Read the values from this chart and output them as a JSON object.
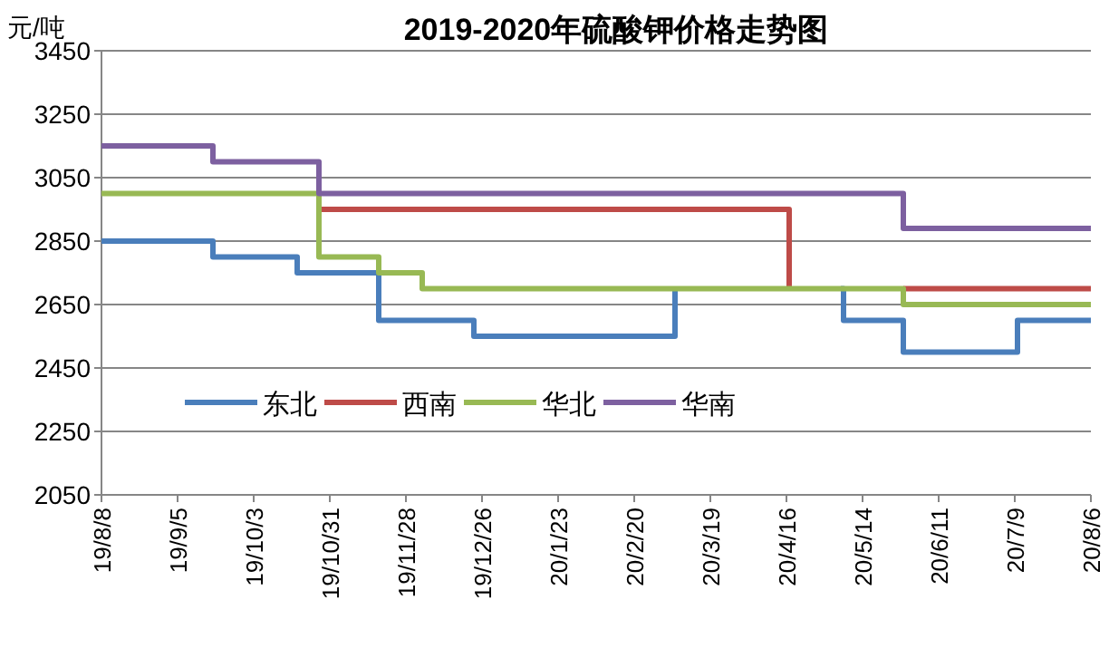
{
  "chart_data": {
    "type": "step",
    "title": "2019-2020年硫酸钾价格走势图",
    "ylabel": "元/吨",
    "xlim": [
      "2019-08-08",
      "2020-08-06"
    ],
    "xticks": [
      {
        "value": "2019-08-08",
        "label": "19/8/8"
      },
      {
        "value": "2019-09-05",
        "label": "19/9/5"
      },
      {
        "value": "2019-10-03",
        "label": "19/10/3"
      },
      {
        "value": "2019-10-31",
        "label": "19/10/31"
      },
      {
        "value": "2019-11-28",
        "label": "19/11/28"
      },
      {
        "value": "2019-12-26",
        "label": "19/12/26"
      },
      {
        "value": "2020-01-23",
        "label": "20/1/23"
      },
      {
        "value": "2020-02-20",
        "label": "20/2/20"
      },
      {
        "value": "2020-03-19",
        "label": "20/3/19"
      },
      {
        "value": "2020-04-16",
        "label": "20/4/16"
      },
      {
        "value": "2020-05-14",
        "label": "20/5/14"
      },
      {
        "value": "2020-06-11",
        "label": "20/6/11"
      },
      {
        "value": "2020-07-09",
        "label": "20/7/9"
      },
      {
        "value": "2020-08-06",
        "label": "20/8/6"
      }
    ],
    "ylim": [
      2050,
      3450
    ],
    "yticks": [
      2050,
      2250,
      2450,
      2650,
      2850,
      3050,
      3250,
      3450
    ],
    "grid": "y",
    "legend": "bottom left",
    "marker": "none",
    "line_style": "solid",
    "series": [
      {
        "name": "东北",
        "color": "#4a7ebb",
        "x": [
          "2019-08-08",
          "2019-09-18",
          "2019-10-19",
          "2019-11-18",
          "2019-12-23",
          "2020-03-06",
          "2020-03-07",
          "2020-05-06",
          "2020-05-07",
          "2020-05-29",
          "2020-07-10",
          "2020-08-06"
        ],
        "values": [
          2850,
          2800,
          2750,
          2600,
          2550,
          2700,
          null,
          2700,
          2600,
          2500,
          2600,
          2600
        ]
      },
      {
        "name": "西南",
        "color": "#be4b48",
        "x": [
          "2019-10-27",
          "2020-04-17",
          "2020-04-18",
          "2020-05-29",
          "2020-08-06"
        ],
        "values": [
          2950,
          2700,
          null,
          2700,
          2700
        ]
      },
      {
        "name": "华北",
        "color": "#98b954",
        "x": [
          "2019-08-08",
          "2019-10-27",
          "2019-11-18",
          "2019-12-04",
          "2020-05-29",
          "2020-08-06"
        ],
        "values": [
          3000,
          2800,
          2750,
          2700,
          2650,
          2650
        ]
      },
      {
        "name": "华南",
        "color": "#7d60a0",
        "x": [
          "2019-08-08",
          "2019-09-18",
          "2019-10-27",
          "2020-05-29",
          "2020-08-06"
        ],
        "values": [
          3150,
          3100,
          3000,
          2890,
          2890
        ]
      }
    ]
  }
}
